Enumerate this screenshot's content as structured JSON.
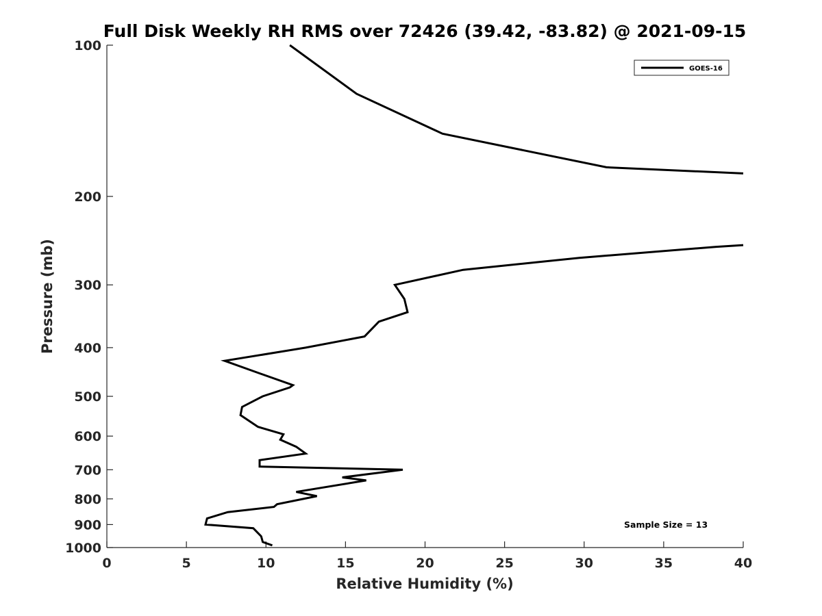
{
  "chart_data": {
    "type": "line",
    "title": "Full Disk Weekly RH RMS over 72426 (39.42, -83.82) @ 2021-09-15",
    "xlabel": "Relative Humidity (%)",
    "ylabel": "Pressure (mb)",
    "xlim": [
      0,
      40
    ],
    "ylim": [
      100,
      1000
    ],
    "y_scale": "log",
    "y_inverted": true,
    "x_ticks": [
      "0",
      "5",
      "10",
      "15",
      "20",
      "25",
      "30",
      "35",
      "40"
    ],
    "y_ticks": [
      "100",
      "200",
      "300",
      "400",
      "500",
      "600",
      "700",
      "800",
      "900",
      "1000"
    ],
    "grid": false,
    "legend_position": "top-right",
    "annotation": "Sample Size = 13",
    "series": [
      {
        "name": "GOES-16",
        "color": "#000000",
        "segments": [
          [
            {
              "x": 11.5,
              "p": 100
            },
            {
              "x": 15.7,
              "p": 125
            },
            {
              "x": 21.1,
              "p": 150
            },
            {
              "x": 31.4,
              "p": 175
            },
            {
              "x": 40.0,
              "p": 180
            }
          ],
          [
            {
              "x": 40.0,
              "p": 250
            },
            {
              "x": 38.3,
              "p": 252
            },
            {
              "x": 29.7,
              "p": 265
            },
            {
              "x": 22.4,
              "p": 280
            },
            {
              "x": 18.1,
              "p": 300
            },
            {
              "x": 18.7,
              "p": 320
            },
            {
              "x": 18.9,
              "p": 340
            },
            {
              "x": 17.1,
              "p": 355
            },
            {
              "x": 16.2,
              "p": 380
            },
            {
              "x": 12.5,
              "p": 400
            },
            {
              "x": 7.4,
              "p": 425
            },
            {
              "x": 9.6,
              "p": 450
            },
            {
              "x": 11.7,
              "p": 475
            },
            {
              "x": 11.5,
              "p": 480
            },
            {
              "x": 9.8,
              "p": 500
            },
            {
              "x": 8.5,
              "p": 525
            },
            {
              "x": 8.4,
              "p": 545
            },
            {
              "x": 9.5,
              "p": 575
            },
            {
              "x": 11.1,
              "p": 595
            },
            {
              "x": 10.9,
              "p": 610
            },
            {
              "x": 11.9,
              "p": 630
            },
            {
              "x": 12.5,
              "p": 650
            },
            {
              "x": 9.6,
              "p": 670
            },
            {
              "x": 9.6,
              "p": 690
            },
            {
              "x": 18.6,
              "p": 700
            },
            {
              "x": 14.8,
              "p": 725
            },
            {
              "x": 16.3,
              "p": 735
            },
            {
              "x": 11.9,
              "p": 775
            },
            {
              "x": 13.2,
              "p": 790
            },
            {
              "x": 10.7,
              "p": 820
            },
            {
              "x": 10.5,
              "p": 830
            },
            {
              "x": 7.6,
              "p": 850
            },
            {
              "x": 6.3,
              "p": 875
            },
            {
              "x": 6.2,
              "p": 900
            },
            {
              "x": 9.2,
              "p": 915
            },
            {
              "x": 9.7,
              "p": 950
            },
            {
              "x": 9.8,
              "p": 975
            },
            {
              "x": 10.4,
              "p": 990
            }
          ]
        ]
      }
    ]
  }
}
